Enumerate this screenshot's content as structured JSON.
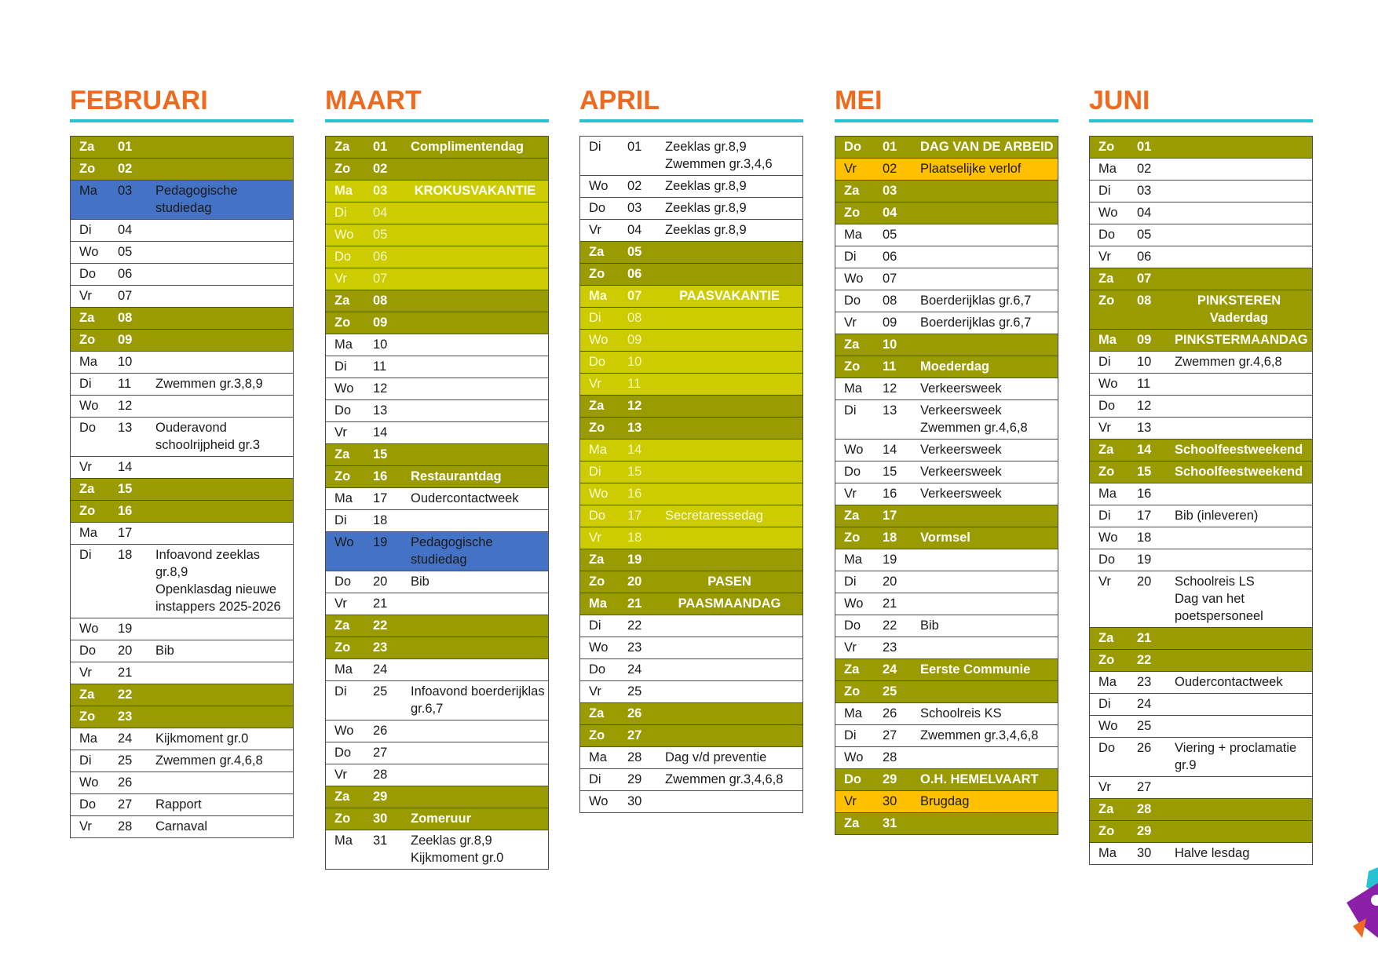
{
  "months": [
    {
      "title": "FEBRUARI",
      "rows": [
        {
          "day": "Za",
          "num": "01",
          "text": "",
          "style": "dk"
        },
        {
          "day": "Zo",
          "num": "02",
          "text": "",
          "style": "dk"
        },
        {
          "day": "Ma",
          "num": "03",
          "text": "Pedagogische studiedag",
          "style": "blue"
        },
        {
          "day": "Di",
          "num": "04",
          "text": "",
          "style": ""
        },
        {
          "day": "Wo",
          "num": "05",
          "text": "",
          "style": ""
        },
        {
          "day": "Do",
          "num": "06",
          "text": "",
          "style": ""
        },
        {
          "day": "Vr",
          "num": "07",
          "text": "",
          "style": ""
        },
        {
          "day": "Za",
          "num": "08",
          "text": "",
          "style": "dk"
        },
        {
          "day": "Zo",
          "num": "09",
          "text": "",
          "style": "dk"
        },
        {
          "day": "Ma",
          "num": "10",
          "text": "",
          "style": ""
        },
        {
          "day": "Di",
          "num": "11",
          "text": "Zwemmen gr.3,8,9",
          "style": ""
        },
        {
          "day": "Wo",
          "num": "12",
          "text": "",
          "style": ""
        },
        {
          "day": "Do",
          "num": "13",
          "text": "Ouderavond schoolrijpheid gr.3",
          "style": ""
        },
        {
          "day": "Vr",
          "num": "14",
          "text": "",
          "style": ""
        },
        {
          "day": "Za",
          "num": "15",
          "text": "",
          "style": "dk"
        },
        {
          "day": "Zo",
          "num": "16",
          "text": "",
          "style": "dk"
        },
        {
          "day": "Ma",
          "num": "17",
          "text": "",
          "style": ""
        },
        {
          "day": "Di",
          "num": "18",
          "text": "Infoavond zeeklas gr.8,9\nOpenklasdag nieuwe instappers 2025-2026",
          "style": ""
        },
        {
          "day": "Wo",
          "num": "19",
          "text": "",
          "style": ""
        },
        {
          "day": "Do",
          "num": "20",
          "text": "Bib",
          "style": ""
        },
        {
          "day": "Vr",
          "num": "21",
          "text": "",
          "style": ""
        },
        {
          "day": "Za",
          "num": "22",
          "text": "",
          "style": "dk"
        },
        {
          "day": "Zo",
          "num": "23",
          "text": "",
          "style": "dk"
        },
        {
          "day": "Ma",
          "num": "24",
          "text": "Kijkmoment gr.0",
          "style": ""
        },
        {
          "day": "Di",
          "num": "25",
          "text": "Zwemmen gr.4,6,8",
          "style": ""
        },
        {
          "day": "Wo",
          "num": "26",
          "text": "",
          "style": ""
        },
        {
          "day": "Do",
          "num": "27",
          "text": "Rapport",
          "style": ""
        },
        {
          "day": "Vr",
          "num": "28",
          "text": "Carnaval",
          "style": ""
        }
      ]
    },
    {
      "title": "MAART",
      "rows": [
        {
          "day": "Za",
          "num": "01",
          "text": "Complimentendag",
          "style": "dk"
        },
        {
          "day": "Zo",
          "num": "02",
          "text": "",
          "style": "dk"
        },
        {
          "day": "Ma",
          "num": "03",
          "text": "KROKUSVAKANTIE",
          "style": "lt bold center"
        },
        {
          "day": "Di",
          "num": "04",
          "text": "",
          "style": "lt"
        },
        {
          "day": "Wo",
          "num": "05",
          "text": "",
          "style": "lt"
        },
        {
          "day": "Do",
          "num": "06",
          "text": "",
          "style": "lt"
        },
        {
          "day": "Vr",
          "num": "07",
          "text": "",
          "style": "lt"
        },
        {
          "day": "Za",
          "num": "08",
          "text": "",
          "style": "dk"
        },
        {
          "day": "Zo",
          "num": "09",
          "text": "",
          "style": "dk"
        },
        {
          "day": "Ma",
          "num": "10",
          "text": "",
          "style": ""
        },
        {
          "day": "Di",
          "num": "11",
          "text": "",
          "style": ""
        },
        {
          "day": "Wo",
          "num": "12",
          "text": "",
          "style": ""
        },
        {
          "day": "Do",
          "num": "13",
          "text": "",
          "style": ""
        },
        {
          "day": "Vr",
          "num": "14",
          "text": "",
          "style": ""
        },
        {
          "day": "Za",
          "num": "15",
          "text": "",
          "style": "dk"
        },
        {
          "day": "Zo",
          "num": "16",
          "text": "Restaurantdag",
          "style": "dk"
        },
        {
          "day": "Ma",
          "num": "17",
          "text": "Oudercontactweek",
          "style": ""
        },
        {
          "day": "Di",
          "num": "18",
          "text": "",
          "style": ""
        },
        {
          "day": "Wo",
          "num": "19",
          "text": "Pedagogische studiedag",
          "style": "blue"
        },
        {
          "day": "Do",
          "num": "20",
          "text": "Bib",
          "style": ""
        },
        {
          "day": "Vr",
          "num": "21",
          "text": "",
          "style": ""
        },
        {
          "day": "Za",
          "num": "22",
          "text": "",
          "style": "dk"
        },
        {
          "day": "Zo",
          "num": "23",
          "text": "",
          "style": "dk"
        },
        {
          "day": "Ma",
          "num": "24",
          "text": "",
          "style": ""
        },
        {
          "day": "Di",
          "num": "25",
          "text": "Infoavond boerderijklas gr.6,7",
          "style": ""
        },
        {
          "day": "Wo",
          "num": "26",
          "text": "",
          "style": ""
        },
        {
          "day": "Do",
          "num": "27",
          "text": "",
          "style": ""
        },
        {
          "day": "Vr",
          "num": "28",
          "text": "",
          "style": ""
        },
        {
          "day": "Za",
          "num": "29",
          "text": "",
          "style": "dk"
        },
        {
          "day": "Zo",
          "num": "30",
          "text": "Zomeruur",
          "style": "dk"
        },
        {
          "day": "Ma",
          "num": "31",
          "text": "Zeeklas gr.8,9\nKijkmoment gr.0",
          "style": ""
        }
      ]
    },
    {
      "title": "APRIL",
      "rows": [
        {
          "day": "Di",
          "num": "01",
          "text": "Zeeklas gr.8,9\nZwemmen gr.3,4,6",
          "style": ""
        },
        {
          "day": "Wo",
          "num": "02",
          "text": "Zeeklas gr.8,9",
          "style": ""
        },
        {
          "day": "Do",
          "num": "03",
          "text": "Zeeklas gr.8,9",
          "style": ""
        },
        {
          "day": "Vr",
          "num": "04",
          "text": "Zeeklas gr.8,9",
          "style": ""
        },
        {
          "day": "Za",
          "num": "05",
          "text": "",
          "style": "dk"
        },
        {
          "day": "Zo",
          "num": "06",
          "text": "",
          "style": "dk"
        },
        {
          "day": "Ma",
          "num": "07",
          "text": "PAASVAKANTIE",
          "style": "lt bold center"
        },
        {
          "day": "Di",
          "num": "08",
          "text": "",
          "style": "lt"
        },
        {
          "day": "Wo",
          "num": "09",
          "text": "",
          "style": "lt"
        },
        {
          "day": "Do",
          "num": "10",
          "text": "",
          "style": "lt"
        },
        {
          "day": "Vr",
          "num": "11",
          "text": "",
          "style": "lt"
        },
        {
          "day": "Za",
          "num": "12",
          "text": "",
          "style": "dk"
        },
        {
          "day": "Zo",
          "num": "13",
          "text": "",
          "style": "dk"
        },
        {
          "day": "Ma",
          "num": "14",
          "text": "",
          "style": "lt"
        },
        {
          "day": "Di",
          "num": "15",
          "text": "",
          "style": "lt"
        },
        {
          "day": "Wo",
          "num": "16",
          "text": "",
          "style": "lt"
        },
        {
          "day": "Do",
          "num": "17",
          "text": "Secretaressedag",
          "style": "lt"
        },
        {
          "day": "Vr",
          "num": "18",
          "text": "",
          "style": "lt"
        },
        {
          "day": "Za",
          "num": "19",
          "text": "",
          "style": "dk"
        },
        {
          "day": "Zo",
          "num": "20",
          "text": "PASEN",
          "style": "dk center"
        },
        {
          "day": "Ma",
          "num": "21",
          "text": "PAASMAANDAG",
          "style": "dk center"
        },
        {
          "day": "Di",
          "num": "22",
          "text": "",
          "style": ""
        },
        {
          "day": "Wo",
          "num": "23",
          "text": "",
          "style": ""
        },
        {
          "day": "Do",
          "num": "24",
          "text": "",
          "style": ""
        },
        {
          "day": "Vr",
          "num": "25",
          "text": "",
          "style": ""
        },
        {
          "day": "Za",
          "num": "26",
          "text": "",
          "style": "dk"
        },
        {
          "day": "Zo",
          "num": "27",
          "text": "",
          "style": "dk"
        },
        {
          "day": "Ma",
          "num": "28",
          "text": "Dag v/d preventie",
          "style": ""
        },
        {
          "day": "Di",
          "num": "29",
          "text": "Zwemmen gr.3,4,6,8",
          "style": ""
        },
        {
          "day": "Wo",
          "num": "30",
          "text": "",
          "style": ""
        }
      ]
    },
    {
      "title": "MEI",
      "rows": [
        {
          "day": "Do",
          "num": "01",
          "text": "DAG VAN DE ARBEID",
          "style": "dk"
        },
        {
          "day": "Vr",
          "num": "02",
          "text": "Plaatselijke verlof",
          "style": "orange"
        },
        {
          "day": "Za",
          "num": "03",
          "text": "",
          "style": "dk"
        },
        {
          "day": "Zo",
          "num": "04",
          "text": "",
          "style": "dk"
        },
        {
          "day": "Ma",
          "num": "05",
          "text": "",
          "style": ""
        },
        {
          "day": "Di",
          "num": "06",
          "text": "",
          "style": ""
        },
        {
          "day": "Wo",
          "num": "07",
          "text": "",
          "style": ""
        },
        {
          "day": "Do",
          "num": "08",
          "text": "Boerderijklas gr.6,7",
          "style": ""
        },
        {
          "day": "Vr",
          "num": "09",
          "text": "Boerderijklas gr.6,7",
          "style": ""
        },
        {
          "day": "Za",
          "num": "10",
          "text": "",
          "style": "dk"
        },
        {
          "day": "Zo",
          "num": "11",
          "text": "Moederdag",
          "style": "dk"
        },
        {
          "day": "Ma",
          "num": "12",
          "text": "Verkeersweek",
          "style": ""
        },
        {
          "day": "Di",
          "num": "13",
          "text": "Verkeersweek\nZwemmen gr.4,6,8",
          "style": ""
        },
        {
          "day": "Wo",
          "num": "14",
          "text": "Verkeersweek",
          "style": ""
        },
        {
          "day": "Do",
          "num": "15",
          "text": "Verkeersweek",
          "style": ""
        },
        {
          "day": "Vr",
          "num": "16",
          "text": "Verkeersweek",
          "style": ""
        },
        {
          "day": "Za",
          "num": "17",
          "text": "",
          "style": "dk"
        },
        {
          "day": "Zo",
          "num": "18",
          "text": "Vormsel",
          "style": "dk"
        },
        {
          "day": "Ma",
          "num": "19",
          "text": "",
          "style": ""
        },
        {
          "day": "Di",
          "num": "20",
          "text": "",
          "style": ""
        },
        {
          "day": "Wo",
          "num": "21",
          "text": "",
          "style": ""
        },
        {
          "day": "Do",
          "num": "22",
          "text": "Bib",
          "style": ""
        },
        {
          "day": "Vr",
          "num": "23",
          "text": "",
          "style": ""
        },
        {
          "day": "Za",
          "num": "24",
          "text": "Eerste Communie",
          "style": "dk"
        },
        {
          "day": "Zo",
          "num": "25",
          "text": "",
          "style": "dk"
        },
        {
          "day": "Ma",
          "num": "26",
          "text": "Schoolreis KS",
          "style": ""
        },
        {
          "day": "Di",
          "num": "27",
          "text": "Zwemmen gr.3,4,6,8",
          "style": ""
        },
        {
          "day": "Wo",
          "num": "28",
          "text": "",
          "style": ""
        },
        {
          "day": "Do",
          "num": "29",
          "text": "O.H. HEMELVAART",
          "style": "dk"
        },
        {
          "day": "Vr",
          "num": "30",
          "text": "Brugdag",
          "style": "orange"
        },
        {
          "day": "Za",
          "num": "31",
          "text": "",
          "style": "dk"
        }
      ]
    },
    {
      "title": "JUNI",
      "rows": [
        {
          "day": "Zo",
          "num": "01",
          "text": "",
          "style": "dk"
        },
        {
          "day": "Ma",
          "num": "02",
          "text": "",
          "style": ""
        },
        {
          "day": "Di",
          "num": "03",
          "text": "",
          "style": ""
        },
        {
          "day": "Wo",
          "num": "04",
          "text": "",
          "style": ""
        },
        {
          "day": "Do",
          "num": "05",
          "text": "",
          "style": ""
        },
        {
          "day": "Vr",
          "num": "06",
          "text": "",
          "style": ""
        },
        {
          "day": "Za",
          "num": "07",
          "text": "",
          "style": "dk"
        },
        {
          "day": "Zo",
          "num": "08",
          "text": "PINKSTEREN\nVaderdag",
          "style": "dk center"
        },
        {
          "day": "Ma",
          "num": "09",
          "text": "PINKSTERMAANDAG",
          "style": "dk"
        },
        {
          "day": "Di",
          "num": "10",
          "text": "Zwemmen gr.4,6,8",
          "style": ""
        },
        {
          "day": "Wo",
          "num": "11",
          "text": "",
          "style": ""
        },
        {
          "day": "Do",
          "num": "12",
          "text": "",
          "style": ""
        },
        {
          "day": "Vr",
          "num": "13",
          "text": "",
          "style": ""
        },
        {
          "day": "Za",
          "num": "14",
          "text": "Schoolfeestweekend",
          "style": "dk"
        },
        {
          "day": "Zo",
          "num": "15",
          "text": "Schoolfeestweekend",
          "style": "dk"
        },
        {
          "day": "Ma",
          "num": "16",
          "text": "",
          "style": ""
        },
        {
          "day": "Di",
          "num": "17",
          "text": "Bib (inleveren)",
          "style": ""
        },
        {
          "day": "Wo",
          "num": "18",
          "text": "",
          "style": ""
        },
        {
          "day": "Do",
          "num": "19",
          "text": "",
          "style": ""
        },
        {
          "day": "Vr",
          "num": "20",
          "text": "Schoolreis LS\nDag van het poetspersoneel",
          "style": ""
        },
        {
          "day": "Za",
          "num": "21",
          "text": "",
          "style": "dk"
        },
        {
          "day": "Zo",
          "num": "22",
          "text": "",
          "style": "dk"
        },
        {
          "day": "Ma",
          "num": "23",
          "text": "Oudercontactweek",
          "style": ""
        },
        {
          "day": "Di",
          "num": "24",
          "text": "",
          "style": ""
        },
        {
          "day": "Wo",
          "num": "25",
          "text": "",
          "style": ""
        },
        {
          "day": "Do",
          "num": "26",
          "text": "Viering + proclamatie gr.9",
          "style": ""
        },
        {
          "day": "Vr",
          "num": "27",
          "text": "",
          "style": ""
        },
        {
          "day": "Za",
          "num": "28",
          "text": "",
          "style": "dk"
        },
        {
          "day": "Zo",
          "num": "29",
          "text": "",
          "style": "dk"
        },
        {
          "day": "Ma",
          "num": "30",
          "text": "Halve lesdag",
          "style": ""
        }
      ]
    }
  ],
  "colors": {
    "title": "#ee6a1f",
    "rule": "#27c3d3",
    "weekend": "#999b00",
    "holiday": "#cccc00",
    "studiedag": "#4472c4",
    "verlof": "#ffc000"
  },
  "logo": {
    "icon": "school-logo-icon"
  }
}
